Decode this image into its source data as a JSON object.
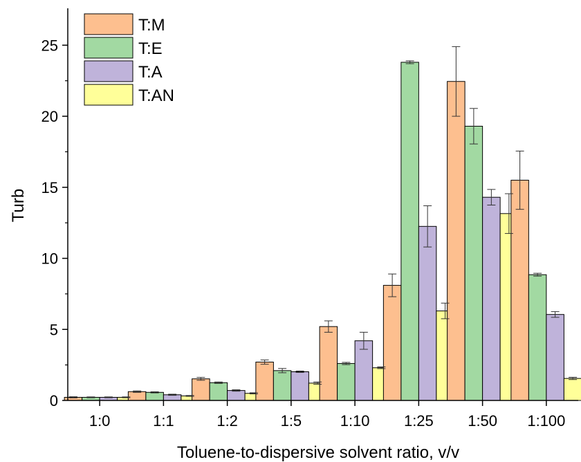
{
  "chart_data": {
    "type": "bar",
    "xlabel": "Toluene-to-dispersive solvent ratio, v/v",
    "ylabel": "Turb",
    "ylim": [
      0,
      27.5
    ],
    "yticks": [
      0,
      5,
      10,
      15,
      20,
      25
    ],
    "categories": [
      "1:0",
      "1:1",
      "1:2",
      "1:5",
      "1:10",
      "1:25",
      "1:50",
      "1:100"
    ],
    "legend_position": "top-left",
    "grid": false,
    "series": [
      {
        "name": "T:M",
        "color": "#FDBF8F",
        "values": [
          0.22,
          0.62,
          1.52,
          2.7,
          5.2,
          8.1,
          22.45,
          15.5
        ],
        "errors": [
          0.04,
          0.05,
          0.1,
          0.15,
          0.4,
          0.8,
          2.45,
          2.05
        ]
      },
      {
        "name": "T:E",
        "color": "#A2D9A2",
        "values": [
          0.22,
          0.57,
          1.25,
          2.1,
          2.6,
          23.8,
          19.3,
          8.85
        ],
        "errors": [
          0.03,
          0.04,
          0.05,
          0.15,
          0.08,
          0.1,
          1.25,
          0.1
        ]
      },
      {
        "name": "T:A",
        "color": "#BFB3DA",
        "values": [
          0.22,
          0.4,
          0.7,
          2.02,
          4.2,
          12.25,
          14.3,
          6.05
        ],
        "errors": [
          0.03,
          0.04,
          0.05,
          0.05,
          0.6,
          1.45,
          0.55,
          0.2
        ]
      },
      {
        "name": "T:AN",
        "color": "#FFFF99",
        "values": [
          0.22,
          0.32,
          0.5,
          1.22,
          2.3,
          6.3,
          13.15,
          1.55
        ],
        "errors": [
          0.03,
          0.03,
          0.04,
          0.08,
          0.06,
          0.55,
          1.4,
          0.08
        ]
      }
    ]
  }
}
